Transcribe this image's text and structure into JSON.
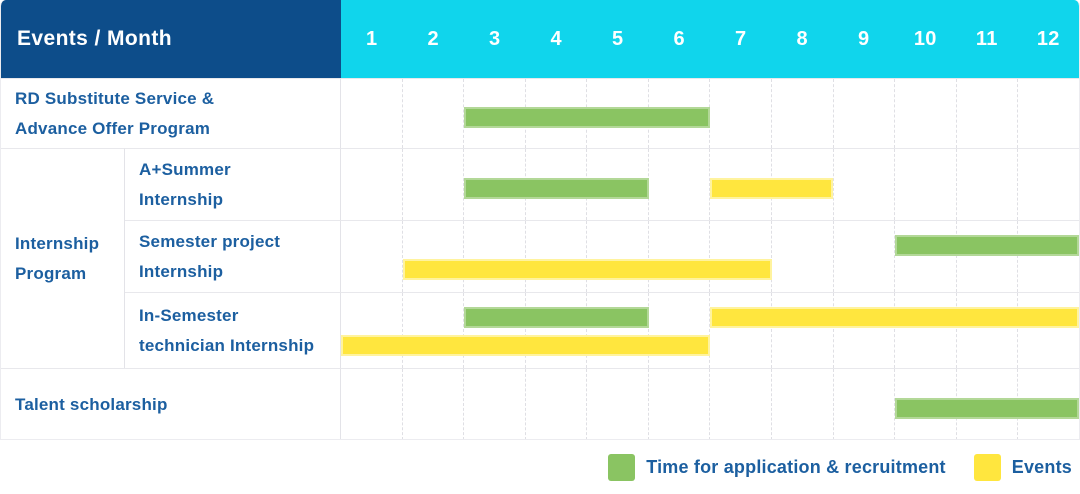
{
  "header": {
    "title": "Events / Month",
    "months": [
      "1",
      "2",
      "3",
      "4",
      "5",
      "6",
      "7",
      "8",
      "9",
      "10",
      "11",
      "12"
    ]
  },
  "colors": {
    "header_bg": "#0d4d8a",
    "months_bg": "#10d5ec",
    "label_text": "#1c5fa0",
    "bar_green": "#8ac462",
    "bar_green_border": "#b3d898",
    "bar_yellow": "#ffe63e",
    "bar_yellow_border": "#fff39e",
    "grid_line": "#dfdfe4",
    "row_border": "#e8e8ec",
    "col_border": "#e3e3e8"
  },
  "rows": [
    {
      "label": "RD Substitute Service & Advance Offer Program",
      "label_lines": [
        "RD Substitute Service &",
        "Advance Offer Program"
      ],
      "sub": false,
      "bars": [
        {
          "type": "application",
          "start_month": 3,
          "end_month": 6,
          "track": "single"
        }
      ]
    },
    {
      "group": "Internship Program",
      "group_lines": [
        "Internship",
        "Program"
      ],
      "group_span": 3,
      "label": "A+Summer Internship",
      "label_lines": [
        "A+Summer",
        "Internship"
      ],
      "sub": true,
      "bars": [
        {
          "type": "application",
          "start_month": 3,
          "end_month": 5,
          "track": "single"
        },
        {
          "type": "event",
          "start_month": 7,
          "end_month": 8,
          "track": "single"
        }
      ]
    },
    {
      "label": "Semester project Internship",
      "label_lines": [
        "Semester project",
        "Internship"
      ],
      "sub": true,
      "bars": [
        {
          "type": "application",
          "start_month": 10,
          "end_month": 12,
          "track": "upper"
        },
        {
          "type": "event",
          "start_month": 2,
          "end_month": 7,
          "track": "lower"
        }
      ]
    },
    {
      "label": "In-Semester technician Internship",
      "label_lines": [
        "In-Semester",
        "technician Internship"
      ],
      "sub": true,
      "bars": [
        {
          "type": "application",
          "start_month": 3,
          "end_month": 5,
          "track": "upper"
        },
        {
          "type": "event",
          "start_month": 7,
          "end_month": 12,
          "track": "upper"
        },
        {
          "type": "event",
          "start_month": 1,
          "end_month": 6,
          "track": "lower"
        }
      ]
    },
    {
      "label": "Talent scholarship",
      "label_lines": [
        "Talent scholarship"
      ],
      "sub": false,
      "bars": [
        {
          "type": "application",
          "start_month": 10,
          "end_month": 12,
          "track": "single"
        }
      ]
    }
  ],
  "legend": [
    {
      "type": "application",
      "label": "Time for application & recruitment"
    },
    {
      "type": "event",
      "label": "Events"
    }
  ],
  "chart_data": {
    "type": "gantt",
    "title": "Events / Month",
    "x": {
      "label": "Month",
      "ticks": [
        1,
        2,
        3,
        4,
        5,
        6,
        7,
        8,
        9,
        10,
        11,
        12
      ],
      "range": [
        1,
        12
      ]
    },
    "legend_position": "bottom-right",
    "grid": "dashed-vertical-month-lines",
    "series_legend": [
      {
        "name": "Time for application & recruitment",
        "color": "#8ac462"
      },
      {
        "name": "Events",
        "color": "#ffe63e"
      }
    ],
    "tasks": [
      {
        "name": "RD Substitute Service & Advance Offer Program",
        "group": null,
        "bars": [
          {
            "series": "Time for application & recruitment",
            "start_month": 3,
            "end_month": 6
          }
        ]
      },
      {
        "name": "A+Summer Internship",
        "group": "Internship Program",
        "bars": [
          {
            "series": "Time for application & recruitment",
            "start_month": 3,
            "end_month": 5
          },
          {
            "series": "Events",
            "start_month": 7,
            "end_month": 8
          }
        ]
      },
      {
        "name": "Semester project Internship",
        "group": "Internship Program",
        "bars": [
          {
            "series": "Time for application & recruitment",
            "start_month": 10,
            "end_month": 12
          },
          {
            "series": "Events",
            "start_month": 2,
            "end_month": 7
          }
        ]
      },
      {
        "name": "In-Semester technician Internship",
        "group": "Internship Program",
        "bars": [
          {
            "series": "Time for application & recruitment",
            "start_month": 3,
            "end_month": 5
          },
          {
            "series": "Events",
            "start_month": 7,
            "end_month": 12
          },
          {
            "series": "Events",
            "start_month": 1,
            "end_month": 6
          }
        ]
      },
      {
        "name": "Talent scholarship",
        "group": null,
        "bars": [
          {
            "series": "Time for application & recruitment",
            "start_month": 10,
            "end_month": 12
          }
        ]
      }
    ]
  }
}
